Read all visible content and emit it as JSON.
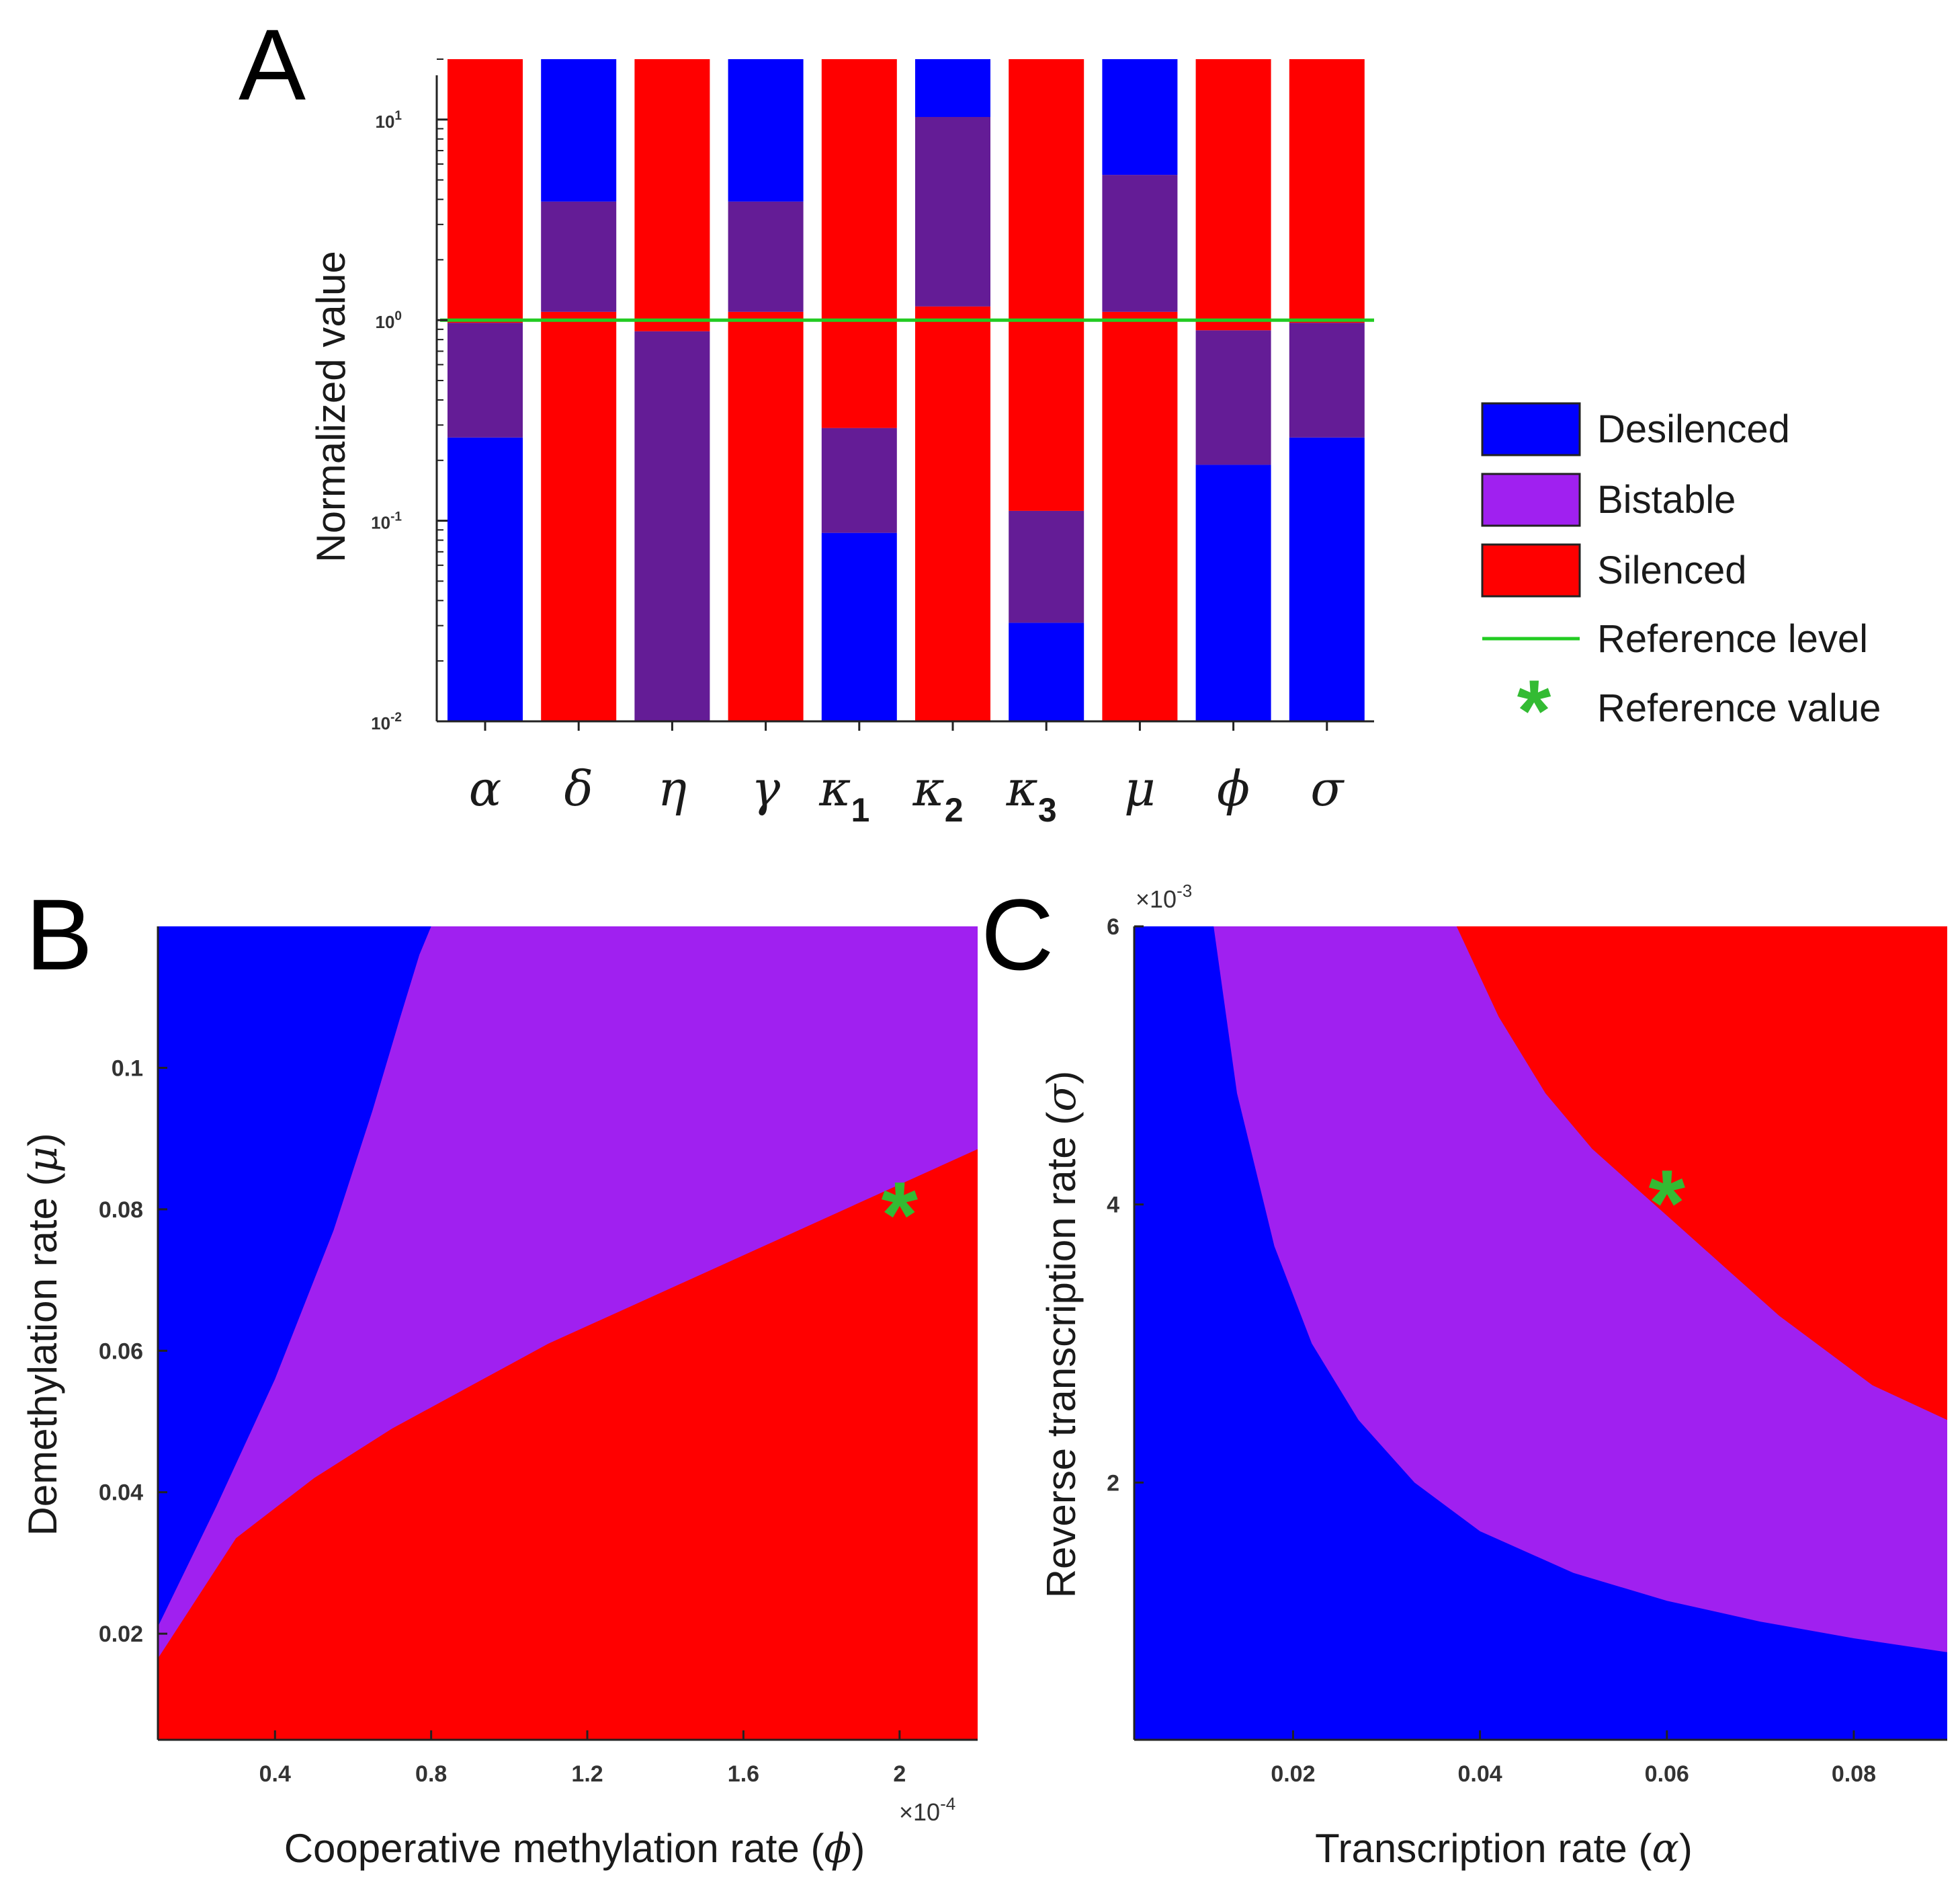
{
  "colors": {
    "desilenced": "#0000ff",
    "bistable_legend": "#a020f0",
    "bistable_overlap": "#641c96",
    "bistable_region": "#a020f0",
    "silenced": "#ff0000",
    "reference": "#22cc22",
    "reference_star": "#33bb33"
  },
  "panels": {
    "a": {
      "letter": "A"
    },
    "b": {
      "letter": "B"
    },
    "c": {
      "letter": "C"
    }
  },
  "legend": {
    "desilenced": "Desilenced",
    "bistable": "Bistable",
    "silenced": "Silenced",
    "reference_level": "Reference level",
    "reference_value": "Reference value",
    "star_glyph": "*"
  },
  "chart_data": [
    {
      "id": "A",
      "type": "bar",
      "scale": "log",
      "ylabel": "Normalized value",
      "ylim": [
        0.01,
        20
      ],
      "yticks": [
        {
          "value": 0.01,
          "base": "10",
          "exp": "-2"
        },
        {
          "value": 0.1,
          "base": "10",
          "exp": "-1"
        },
        {
          "value": 1,
          "base": "10",
          "exp": "0"
        },
        {
          "value": 10,
          "base": "10",
          "exp": "1"
        }
      ],
      "reference_level": 1.0,
      "categories": [
        {
          "symbol": "α",
          "sub": ""
        },
        {
          "symbol": "δ",
          "sub": ""
        },
        {
          "symbol": "η",
          "sub": ""
        },
        {
          "symbol": "γ",
          "sub": ""
        },
        {
          "symbol": "κ",
          "sub": "1"
        },
        {
          "symbol": "κ",
          "sub": "2"
        },
        {
          "symbol": "κ",
          "sub": "3"
        },
        {
          "symbol": "μ",
          "sub": ""
        },
        {
          "symbol": "ϕ",
          "sub": ""
        },
        {
          "symbol": "σ",
          "sub": ""
        }
      ],
      "series": [
        {
          "name": "α",
          "segments": [
            {
              "state": "desilenced",
              "from": 0.01,
              "to": 0.26
            },
            {
              "state": "bistable",
              "from": 0.26,
              "to": 0.97
            },
            {
              "state": "silenced",
              "from": 0.97,
              "to": 20
            }
          ]
        },
        {
          "name": "δ",
          "segments": [
            {
              "state": "silenced",
              "from": 0.01,
              "to": 1.1
            },
            {
              "state": "bistable",
              "from": 1.1,
              "to": 3.9
            },
            {
              "state": "desilenced",
              "from": 3.9,
              "to": 20
            }
          ]
        },
        {
          "name": "η",
          "segments": [
            {
              "state": "bistable",
              "from": 0.01,
              "to": 0.88
            },
            {
              "state": "silenced",
              "from": 0.88,
              "to": 20
            }
          ]
        },
        {
          "name": "γ",
          "segments": [
            {
              "state": "silenced",
              "from": 0.01,
              "to": 1.1
            },
            {
              "state": "bistable",
              "from": 1.1,
              "to": 3.9
            },
            {
              "state": "desilenced",
              "from": 3.9,
              "to": 20
            }
          ]
        },
        {
          "name": "κ1",
          "segments": [
            {
              "state": "desilenced",
              "from": 0.01,
              "to": 0.087
            },
            {
              "state": "bistable",
              "from": 0.087,
              "to": 0.29
            },
            {
              "state": "silenced",
              "from": 0.29,
              "to": 20
            }
          ]
        },
        {
          "name": "κ2",
          "segments": [
            {
              "state": "silenced",
              "from": 0.01,
              "to": 1.17
            },
            {
              "state": "bistable",
              "from": 1.17,
              "to": 10.3
            },
            {
              "state": "desilenced",
              "from": 10.3,
              "to": 20
            }
          ]
        },
        {
          "name": "κ3",
          "segments": [
            {
              "state": "desilenced",
              "from": 0.01,
              "to": 0.031
            },
            {
              "state": "bistable",
              "from": 0.031,
              "to": 0.112
            },
            {
              "state": "silenced",
              "from": 0.112,
              "to": 20
            }
          ]
        },
        {
          "name": "μ",
          "segments": [
            {
              "state": "silenced",
              "from": 0.01,
              "to": 1.1
            },
            {
              "state": "bistable",
              "from": 1.1,
              "to": 5.3
            },
            {
              "state": "desilenced",
              "from": 5.3,
              "to": 20
            }
          ]
        },
        {
          "name": "ϕ",
          "segments": [
            {
              "state": "desilenced",
              "from": 0.01,
              "to": 0.19
            },
            {
              "state": "bistable",
              "from": 0.19,
              "to": 0.89
            },
            {
              "state": "silenced",
              "from": 0.89,
              "to": 20
            }
          ]
        },
        {
          "name": "σ",
          "segments": [
            {
              "state": "desilenced",
              "from": 0.01,
              "to": 0.26
            },
            {
              "state": "bistable",
              "from": 0.26,
              "to": 0.97
            },
            {
              "state": "silenced",
              "from": 0.97,
              "to": 20
            }
          ]
        }
      ]
    },
    {
      "id": "B",
      "type": "heatmap",
      "xlabel": "Cooperative methylation rate (",
      "xlabel_symbol": "ϕ",
      "xlabel_end": ")",
      "ylabel": "Demethylation rate (",
      "ylabel_symbol": "μ",
      "ylabel_end": ")",
      "x_multiplier": "×10",
      "x_multiplier_exp": "-4",
      "xlim": [
        0.1,
        2.2
      ],
      "ylim": [
        0.005,
        0.12
      ],
      "xticks": [
        0.4,
        0.8,
        1.2,
        1.6,
        2
      ],
      "xtick_labels": [
        "0.4",
        "0.8",
        "1.2",
        "1.6",
        "2"
      ],
      "yticks": [
        0.02,
        0.04,
        0.06,
        0.08,
        0.1
      ],
      "ytick_labels": [
        "0.02",
        "0.04",
        "0.06",
        "0.08",
        "0.1"
      ],
      "desilenced_boundary": [
        [
          0.1,
          0.021
        ],
        [
          0.25,
          0.038
        ],
        [
          0.4,
          0.056
        ],
        [
          0.55,
          0.077
        ],
        [
          0.65,
          0.094
        ],
        [
          0.72,
          0.107
        ],
        [
          0.77,
          0.116
        ],
        [
          0.8,
          0.12
        ]
      ],
      "silenced_boundary": [
        [
          0.1,
          0.0165
        ],
        [
          0.3,
          0.0335
        ],
        [
          0.5,
          0.042
        ],
        [
          0.7,
          0.049
        ],
        [
          0.9,
          0.055
        ],
        [
          1.1,
          0.061
        ],
        [
          1.3,
          0.066
        ],
        [
          1.5,
          0.071
        ],
        [
          1.7,
          0.076
        ],
        [
          1.9,
          0.081
        ],
        [
          2.1,
          0.086
        ],
        [
          2.2,
          0.0885
        ]
      ],
      "reference_point": {
        "x": 2.0,
        "y": 0.079
      }
    },
    {
      "id": "C",
      "type": "heatmap",
      "xlabel": "Transcription rate (",
      "xlabel_symbol": "α",
      "xlabel_end": ")",
      "ylabel": "Reverse transcription rate (",
      "ylabel_symbol": "σ",
      "ylabel_end": ")",
      "y_multiplier": "×10",
      "y_multiplier_exp": "-3",
      "xlim": [
        0.003,
        0.09
      ],
      "ylim": [
        0.15,
        6
      ],
      "xticks": [
        0.02,
        0.04,
        0.06,
        0.08
      ],
      "xtick_labels": [
        "0.02",
        "0.04",
        "0.06",
        "0.08"
      ],
      "yticks": [
        2,
        4,
        6
      ],
      "ytick_labels": [
        "2",
        "4",
        "6"
      ],
      "desilenced_boundary": [
        [
          0.0115,
          6
        ],
        [
          0.014,
          4.8
        ],
        [
          0.018,
          3.7
        ],
        [
          0.022,
          3.0
        ],
        [
          0.027,
          2.45
        ],
        [
          0.033,
          2.0
        ],
        [
          0.04,
          1.65
        ],
        [
          0.05,
          1.35
        ],
        [
          0.06,
          1.15
        ],
        [
          0.07,
          1.0
        ],
        [
          0.08,
          0.88
        ],
        [
          0.09,
          0.78
        ]
      ],
      "silenced_boundary": [
        [
          0.0375,
          6
        ],
        [
          0.042,
          5.35
        ],
        [
          0.047,
          4.8
        ],
        [
          0.052,
          4.4
        ],
        [
          0.057,
          4.1
        ],
        [
          0.062,
          3.8
        ],
        [
          0.067,
          3.5
        ],
        [
          0.072,
          3.2
        ],
        [
          0.077,
          2.95
        ],
        [
          0.082,
          2.7
        ],
        [
          0.09,
          2.45
        ]
      ],
      "reference_point": {
        "x": 0.06,
        "y": 4.0
      }
    }
  ]
}
